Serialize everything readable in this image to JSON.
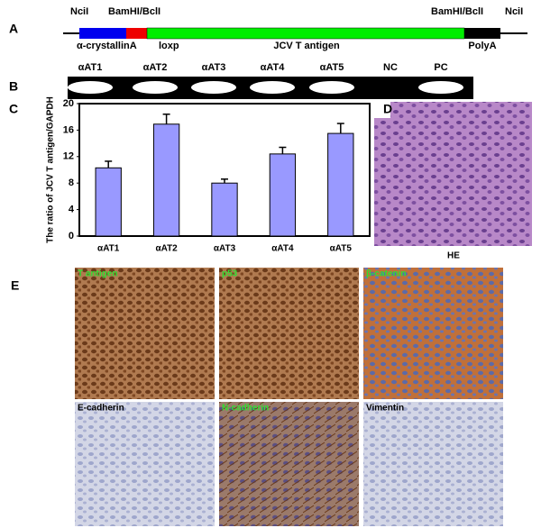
{
  "panel_labels": [
    "A",
    "B",
    "C",
    "D",
    "E"
  ],
  "construct": {
    "sites": [
      "NciI",
      "BamHI/BclI",
      "BamHI/BclI",
      "NciI"
    ],
    "elements": [
      "α-crystallinA",
      "loxp",
      "JCV T antigen",
      "PolyA"
    ]
  },
  "gel": {
    "lanes": [
      "αAT1",
      "αAT2",
      "αAT3",
      "αAT4",
      "αAT5",
      "NC",
      "PC"
    ]
  },
  "chart_data": {
    "type": "bar",
    "y_label": "The ratio of JCV T antigen/GAPDH",
    "categories": [
      "αAT1",
      "αAT2",
      "αAT3",
      "αAT4",
      "αAT5"
    ],
    "values": [
      10.3,
      16.9,
      8,
      12.4,
      15.5
    ],
    "errors": [
      1,
      1.5,
      0.6,
      1,
      1.5
    ],
    "color": "#9999ff",
    "ylim": [
      0,
      20
    ],
    "yticks": [
      0,
      4,
      8,
      12,
      16,
      20
    ]
  },
  "histology": {
    "he_label": "HE",
    "ihc_labels": [
      "T antigen",
      "p53",
      "β-catenin",
      "E-cadherin",
      "N-cadherin",
      "Vimentin"
    ]
  }
}
